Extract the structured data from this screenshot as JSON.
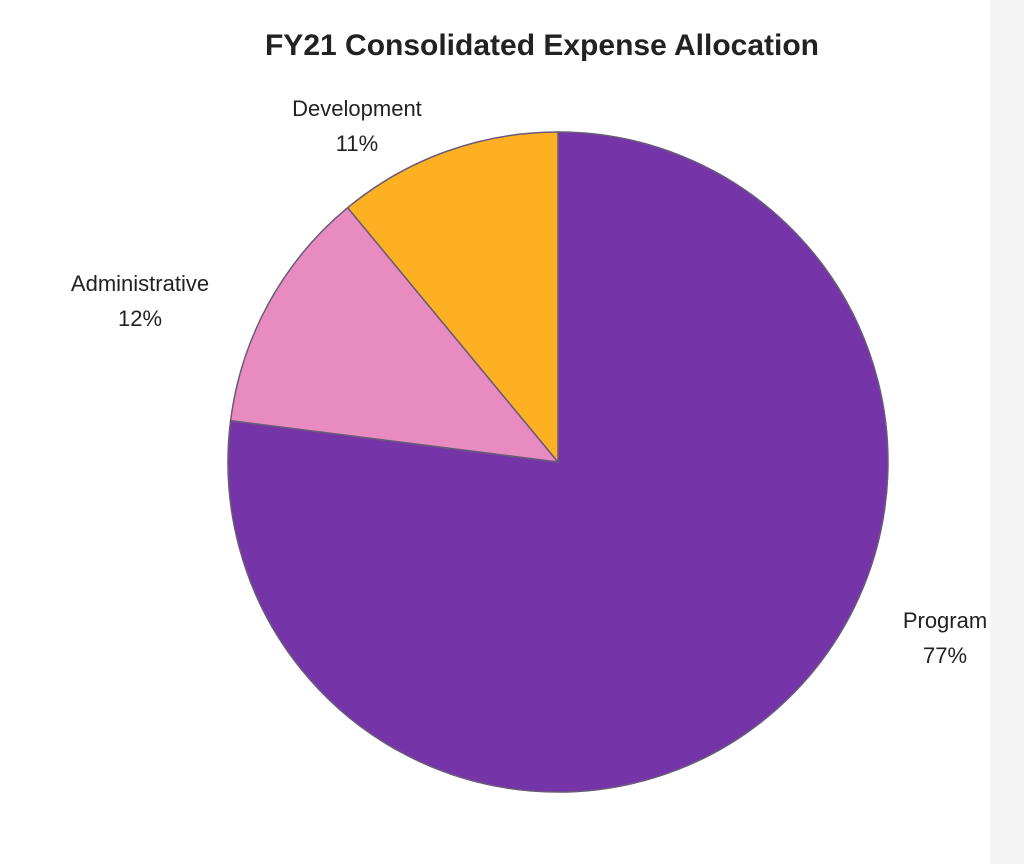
{
  "chart_data": {
    "type": "pie",
    "title": "FY21 Consolidated Expense Allocation",
    "categories": [
      "Program",
      "Administrative",
      "Development"
    ],
    "values": [
      77,
      12,
      11
    ],
    "value_labels": [
      "77%",
      "12%",
      "11%"
    ],
    "colors": [
      "#7535a8",
      "#e88bc0",
      "#fdb022"
    ]
  }
}
